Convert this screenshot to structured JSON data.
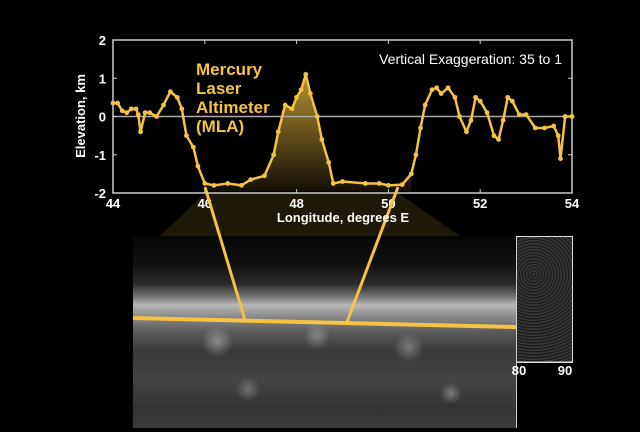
{
  "chart_data": {
    "type": "scatter",
    "xlabel": "Longitude, degrees E",
    "ylabel": "Elevation, km",
    "xlim": [
      44,
      54
    ],
    "ylim": [
      -2,
      2
    ],
    "xticks": [
      "44",
      "46",
      "48",
      "50",
      "52",
      "54"
    ],
    "yticks": [
      "2",
      "1",
      "0",
      "-1",
      "-2"
    ],
    "annotation": [
      "Mercury",
      "Laser",
      "Altimeter",
      "(MLA)"
    ],
    "note": "Vertical Exaggeration: 35 to 1",
    "series_color": "#f5c242",
    "x": [
      44.0,
      44.1,
      44.2,
      44.3,
      44.4,
      44.5,
      44.55,
      44.6,
      44.7,
      44.8,
      44.95,
      45.1,
      45.25,
      45.4,
      45.5,
      45.6,
      45.75,
      45.85,
      46.0,
      46.2,
      46.5,
      46.8,
      47.0,
      47.3,
      47.5,
      47.6,
      47.75,
      47.9,
      48.0,
      48.1,
      48.2,
      48.3,
      48.45,
      48.55,
      48.7,
      48.8,
      49.0,
      49.5,
      49.8,
      50.0,
      50.3,
      50.5,
      50.6,
      50.7,
      50.8,
      50.95,
      51.05,
      51.15,
      51.3,
      51.45,
      51.55,
      51.7,
      51.8,
      51.9,
      52.0,
      52.15,
      52.3,
      52.4,
      52.5,
      52.6,
      52.7,
      52.85,
      53.0,
      53.2,
      53.4,
      53.6,
      53.7,
      53.75,
      53.85,
      54.0
    ],
    "y": [
      0.35,
      0.35,
      0.15,
      0.1,
      0.2,
      0.2,
      0.05,
      -0.4,
      0.1,
      0.1,
      0.0,
      0.3,
      0.65,
      0.5,
      0.2,
      -0.5,
      -0.8,
      -1.3,
      -1.75,
      -1.8,
      -1.75,
      -1.8,
      -1.65,
      -1.55,
      -1.0,
      -0.4,
      0.3,
      0.2,
      0.5,
      0.7,
      1.1,
      0.6,
      0.0,
      -0.6,
      -1.2,
      -1.75,
      -1.7,
      -1.75,
      -1.75,
      -1.8,
      -1.78,
      -1.5,
      -1.0,
      -0.3,
      0.3,
      0.7,
      0.75,
      0.6,
      0.75,
      0.5,
      0.0,
      -0.4,
      -0.1,
      0.5,
      0.4,
      0.1,
      -0.5,
      -0.6,
      -0.1,
      0.5,
      0.4,
      0.05,
      0.05,
      -0.3,
      -0.3,
      -0.25,
      -0.5,
      -1.1,
      0.0,
      0.0
    ],
    "image_ticks": [
      "80",
      "90"
    ]
  }
}
